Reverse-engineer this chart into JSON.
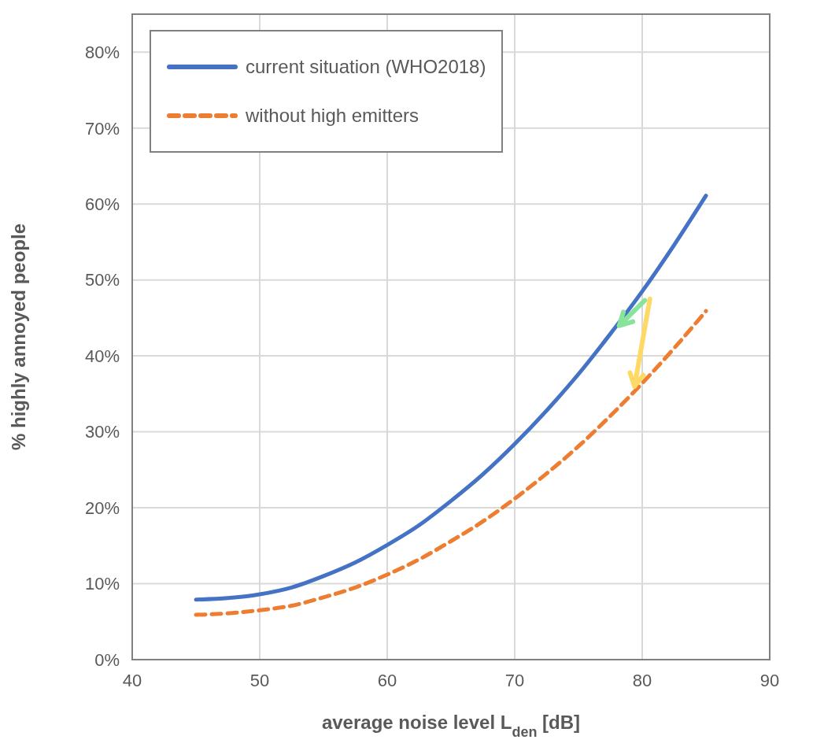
{
  "chart_data": {
    "type": "line",
    "xlabel": "average noise level L$_{den}$ [dB]",
    "ylabel": "% highly annoyed people",
    "x": [
      45,
      47.5,
      50,
      52.5,
      55,
      57.5,
      60,
      62.5,
      65,
      67.5,
      70,
      72.5,
      75,
      77.5,
      80,
      82.5,
      85
    ],
    "series": [
      {
        "name": "current situation (WHO2018)",
        "color": "#4472c4",
        "line_style": "solid",
        "values": [
          7.9,
          8.1,
          8.6,
          9.5,
          11,
          12.8,
          15.1,
          17.7,
          20.9,
          24.4,
          28.4,
          32.8,
          37.6,
          42.9,
          48.5,
          54.6,
          61.1
        ]
      },
      {
        "name": "without high emitters",
        "color": "#ed7d31",
        "line_style": "dashed",
        "values": [
          5.9,
          6.1,
          6.5,
          7.1,
          8.2,
          9.5,
          11.2,
          13.2,
          15.6,
          18.2,
          21.2,
          24.5,
          28.1,
          32.1,
          36.4,
          41,
          45.9
        ]
      }
    ],
    "xlim": [
      40,
      90
    ],
    "xticks": [
      40,
      50,
      60,
      70,
      80,
      90
    ],
    "ylim": [
      0,
      85
    ],
    "yticks": [
      {
        "value": 0,
        "label": "0%"
      },
      {
        "value": 10,
        "label": "10%"
      },
      {
        "value": 20,
        "label": "20%"
      },
      {
        "value": 30,
        "label": "30%"
      },
      {
        "value": 40,
        "label": "40%"
      },
      {
        "value": 50,
        "label": "50%"
      },
      {
        "value": 60,
        "label": "60%"
      },
      {
        "value": 70,
        "label": "70%"
      },
      {
        "value": 80,
        "label": "80%"
      }
    ],
    "grid": true,
    "legend": "top left",
    "marker": "none"
  }
}
